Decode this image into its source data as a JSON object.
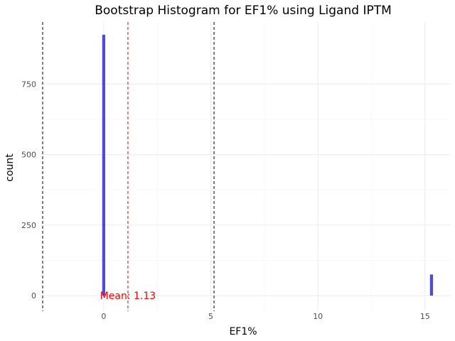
{
  "chart_data": {
    "type": "bar",
    "title": "Bootstrap Histogram for EF1% using Ligand IPTM",
    "xlabel": "EF1%",
    "ylabel": "count",
    "xlim": [
      -2.95,
      16.2
    ],
    "ylim": [
      -55,
      970
    ],
    "x_ticks": [
      0,
      5,
      10,
      15
    ],
    "y_ticks": [
      0,
      250,
      500,
      750
    ],
    "x_tick_labels": [
      "0",
      "5",
      "10",
      "15"
    ],
    "y_tick_labels": [
      "0",
      "250",
      "500",
      "750"
    ],
    "bars": [
      {
        "x": 0,
        "count": 925
      },
      {
        "x": 15.3,
        "count": 75
      }
    ],
    "bar_color": "#4a48ee",
    "vlines": [
      {
        "x": -2.85,
        "color": "#000000",
        "style": "dashed"
      },
      {
        "x": 5.15,
        "color": "#000000",
        "style": "dashed"
      },
      {
        "x": 1.13,
        "color": "#e00000",
        "style": "dashed"
      }
    ],
    "annotation": {
      "text": "Mean: 1.13",
      "x": 1.13,
      "y": 0,
      "color": "#ff0000"
    },
    "grid": true,
    "legend": "none"
  }
}
